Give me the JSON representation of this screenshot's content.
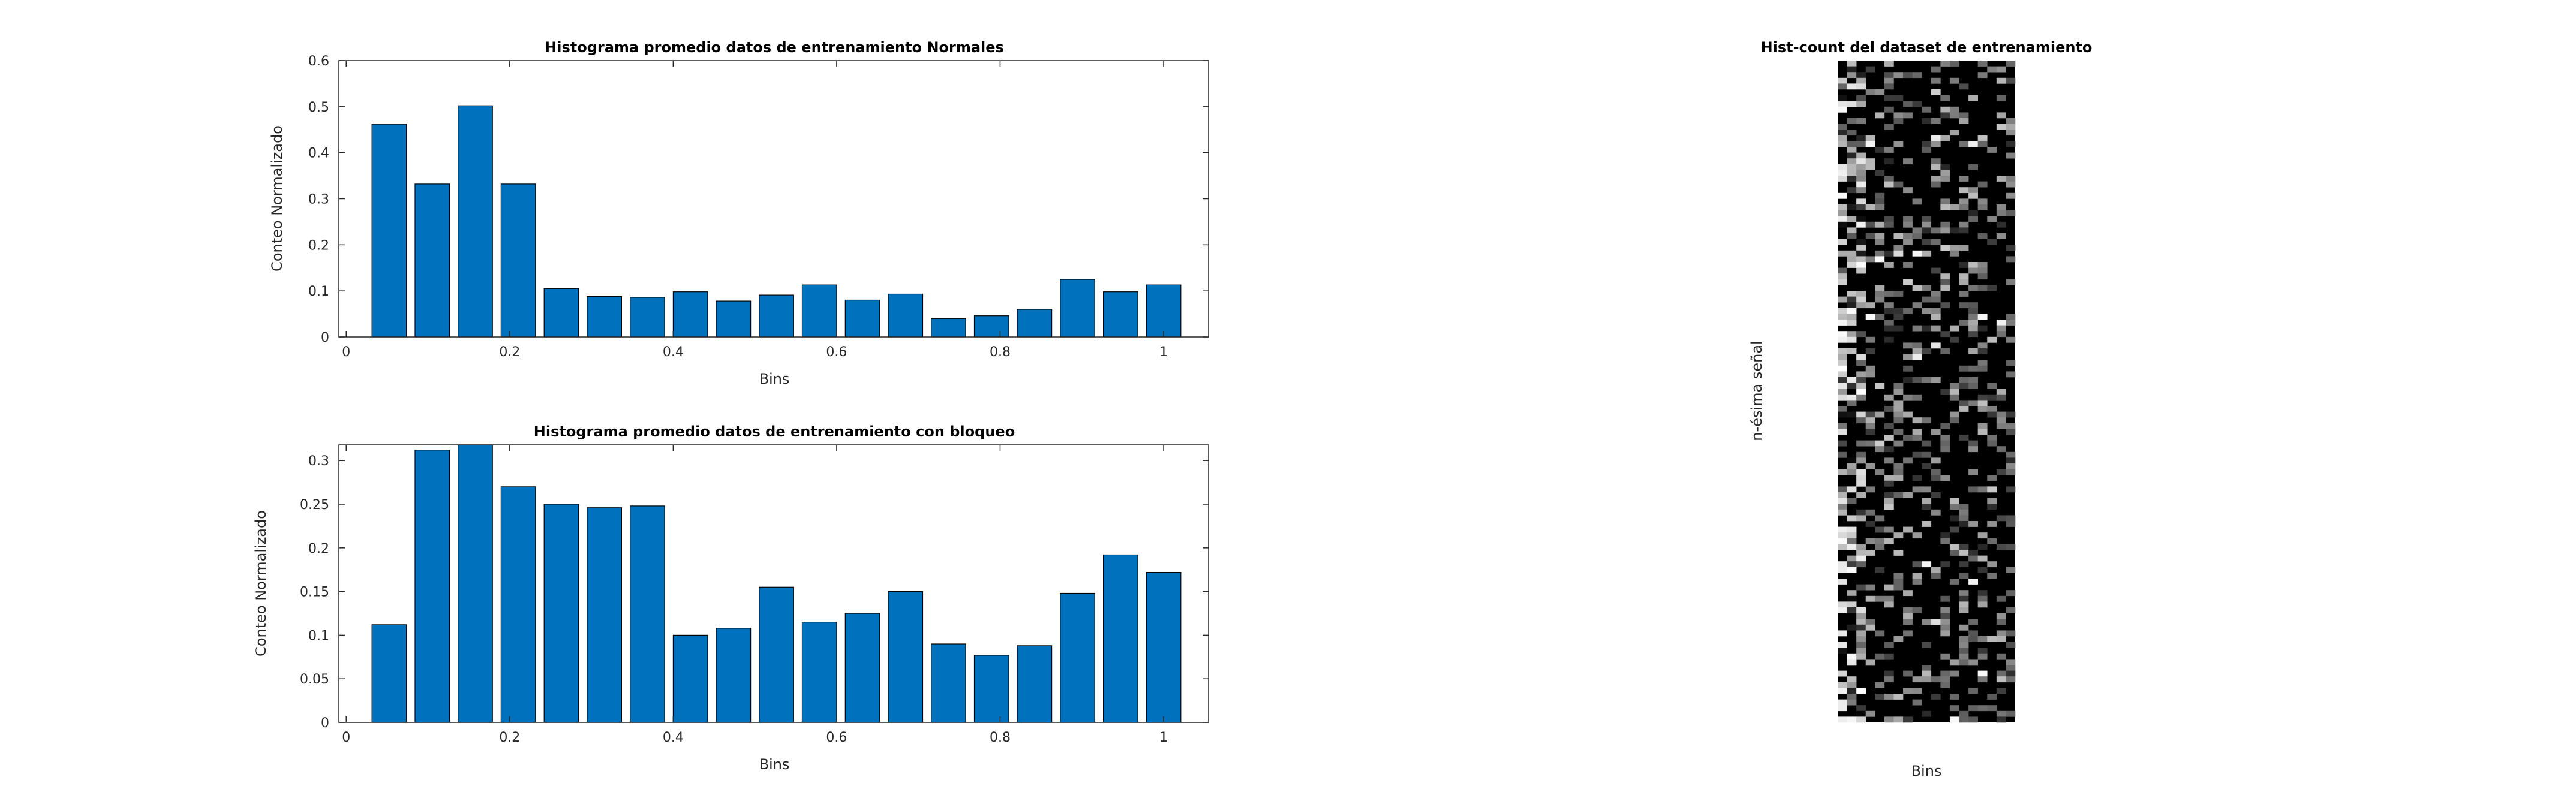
{
  "chart_data": [
    {
      "type": "bar",
      "title": "Histograma promedio datos de entrenamiento Normales",
      "xlabel": "Bins",
      "ylabel": "Conteo Normalizado",
      "x": [
        0.0526,
        0.1053,
        0.1579,
        0.2105,
        0.2632,
        0.3158,
        0.3684,
        0.4211,
        0.4737,
        0.5263,
        0.5789,
        0.6316,
        0.6842,
        0.7368,
        0.7895,
        0.8421,
        0.8947,
        0.9474,
        1.0
      ],
      "values": [
        0.462,
        0.332,
        0.502,
        0.332,
        0.105,
        0.088,
        0.086,
        0.098,
        0.078,
        0.091,
        0.113,
        0.08,
        0.093,
        0.04,
        0.046,
        0.06,
        0.125,
        0.098,
        0.113
      ],
      "xlim": [
        -0.009,
        1.055
      ],
      "ylim": [
        0,
        0.6
      ],
      "xticks": [
        "0",
        "0.2",
        "0.4",
        "0.6",
        "0.8",
        "1"
      ],
      "yticks": [
        "0",
        "0.1",
        "0.2",
        "0.3",
        "0.4",
        "0.5",
        "0.6"
      ],
      "bar_color": "#0072bd",
      "grid": false
    },
    {
      "type": "bar",
      "title": "Histograma promedio datos de entrenamiento con bloqueo",
      "xlabel": "Bins",
      "ylabel": "Conteo Normalizado",
      "x": [
        0.0526,
        0.1053,
        0.1579,
        0.2105,
        0.2632,
        0.3158,
        0.3684,
        0.4211,
        0.4737,
        0.5263,
        0.5789,
        0.6316,
        0.6842,
        0.7368,
        0.7895,
        0.8421,
        0.8947,
        0.9474,
        1.0
      ],
      "values": [
        0.112,
        0.312,
        0.318,
        0.27,
        0.25,
        0.246,
        0.248,
        0.1,
        0.108,
        0.155,
        0.115,
        0.125,
        0.15,
        0.09,
        0.077,
        0.088,
        0.148,
        0.192,
        0.172
      ],
      "xlim": [
        -0.009,
        1.055
      ],
      "ylim": [
        0,
        0.318
      ],
      "xticks": [
        "0",
        "0.2",
        "0.4",
        "0.6",
        "0.8",
        "1"
      ],
      "yticks": [
        "0",
        "0.05",
        "0.1",
        "0.15",
        "0.2",
        "0.25",
        "0.3"
      ],
      "bar_color": "#0072bd",
      "grid": false
    },
    {
      "type": "heatmap",
      "title": "Hist-count del dataset de entrenamiento",
      "xlabel": "Bins",
      "ylabel": "n-ésima señal",
      "colormap": "gray",
      "columns": 19,
      "rows": 115
    }
  ]
}
